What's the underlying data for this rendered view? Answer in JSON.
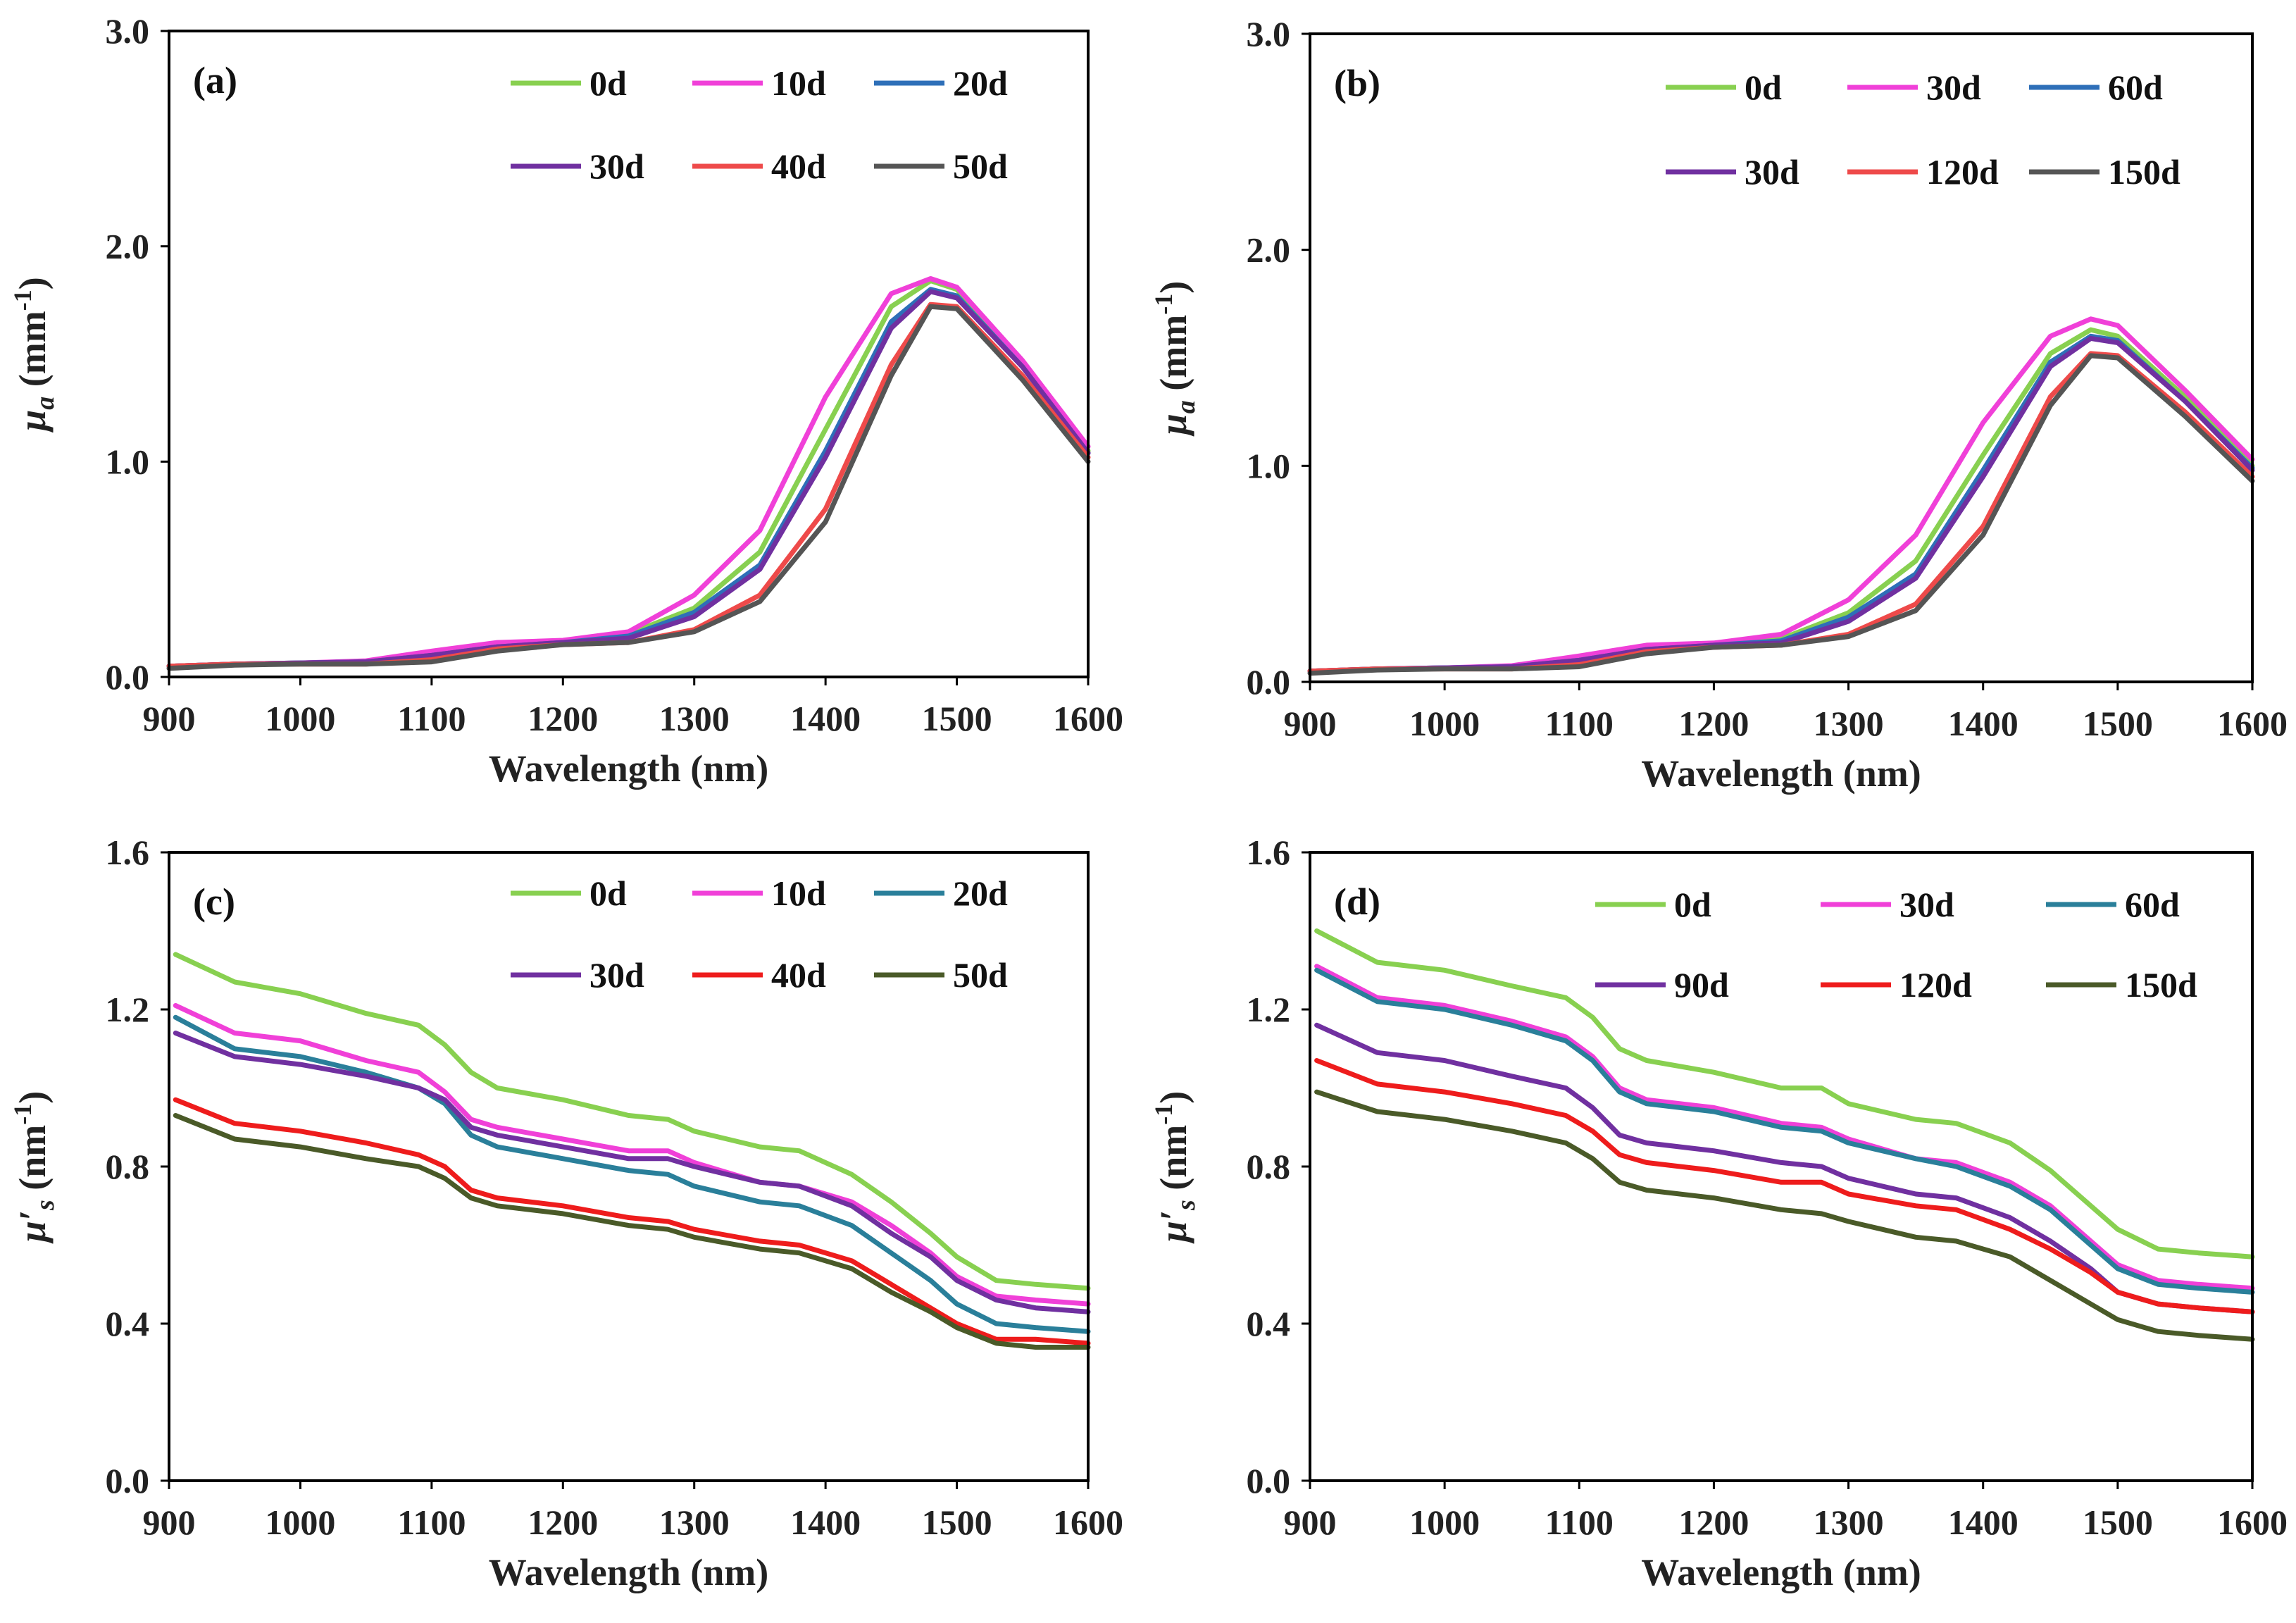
{
  "chart_data": [
    {
      "type": "line",
      "panel": "(a)",
      "xlabel": "Wavelength (nm)",
      "ylabel": "μa (mm⁻¹)",
      "ylabel_parts": {
        "symbol": "μ",
        "subscript": "a",
        "unit_pre": "(mm",
        "unit_sup": "-1",
        "unit_post": ")"
      },
      "xlim": [
        900,
        1600
      ],
      "ylim": [
        0,
        3
      ],
      "xticks": [
        "900",
        "1000",
        "1100",
        "1200",
        "1300",
        "1400",
        "1500",
        "1600"
      ],
      "xtick_values": [
        900,
        1000,
        1100,
        1200,
        1300,
        1400,
        1500,
        1600
      ],
      "yticks": [
        "0.0",
        "1.0",
        "2.0",
        "3.0"
      ],
      "ytick_values": [
        0,
        1,
        2,
        3
      ],
      "x": [
        900,
        950,
        1000,
        1050,
        1100,
        1150,
        1200,
        1250,
        1300,
        1350,
        1400,
        1450,
        1480,
        1500,
        1550,
        1600
      ],
      "series": [
        {
          "name": "0d",
          "color": "#88d050",
          "values": [
            0.05,
            0.06,
            0.065,
            0.07,
            0.1,
            0.14,
            0.16,
            0.2,
            0.32,
            0.58,
            1.15,
            1.72,
            1.84,
            1.8,
            1.45,
            1.05
          ]
        },
        {
          "name": "10d",
          "color": "#f040d8",
          "values": [
            0.05,
            0.06,
            0.065,
            0.075,
            0.12,
            0.16,
            0.17,
            0.21,
            0.38,
            0.68,
            1.3,
            1.78,
            1.85,
            1.81,
            1.47,
            1.07
          ]
        },
        {
          "name": "20d",
          "color": "#2e6fb8",
          "values": [
            0.05,
            0.06,
            0.065,
            0.07,
            0.1,
            0.14,
            0.16,
            0.19,
            0.3,
            0.52,
            1.05,
            1.65,
            1.8,
            1.77,
            1.44,
            1.04
          ]
        },
        {
          "name": "30d",
          "color": "#7030a0",
          "values": [
            0.05,
            0.06,
            0.065,
            0.07,
            0.1,
            0.14,
            0.16,
            0.18,
            0.28,
            0.5,
            1.02,
            1.62,
            1.79,
            1.76,
            1.44,
            1.04
          ]
        },
        {
          "name": "40d",
          "color": "#ee4a4a",
          "values": [
            0.05,
            0.06,
            0.06,
            0.06,
            0.08,
            0.13,
            0.15,
            0.16,
            0.22,
            0.38,
            0.78,
            1.45,
            1.73,
            1.72,
            1.4,
            1.02
          ]
        },
        {
          "name": "50d",
          "color": "#555555",
          "values": [
            0.04,
            0.055,
            0.06,
            0.06,
            0.07,
            0.12,
            0.15,
            0.16,
            0.21,
            0.35,
            0.72,
            1.4,
            1.72,
            1.71,
            1.38,
            1.0
          ]
        }
      ]
    },
    {
      "type": "line",
      "panel": "(b)",
      "xlabel": "Wavelength (nm)",
      "ylabel": "μa (mm⁻¹)",
      "ylabel_parts": {
        "symbol": "μ",
        "subscript": "a",
        "unit_pre": "(mm",
        "unit_sup": "-1",
        "unit_post": ")"
      },
      "xlim": [
        900,
        1600
      ],
      "ylim": [
        0,
        3
      ],
      "xticks": [
        "900",
        "1000",
        "1100",
        "1200",
        "1300",
        "1400",
        "1500",
        "1600"
      ],
      "xtick_values": [
        900,
        1000,
        1100,
        1200,
        1300,
        1400,
        1500,
        1600
      ],
      "yticks": [
        "0.0",
        "1.0",
        "2.0",
        "3.0"
      ],
      "ytick_values": [
        0,
        1,
        2,
        3
      ],
      "x": [
        900,
        950,
        1000,
        1050,
        1100,
        1150,
        1200,
        1250,
        1300,
        1350,
        1400,
        1450,
        1480,
        1500,
        1550,
        1600
      ],
      "series": [
        {
          "name": "0d",
          "color": "#88d050",
          "values": [
            0.05,
            0.06,
            0.065,
            0.07,
            0.1,
            0.15,
            0.17,
            0.2,
            0.32,
            0.56,
            1.05,
            1.52,
            1.63,
            1.6,
            1.32,
            1.0
          ]
        },
        {
          "name": "30d",
          "color": "#f040d8",
          "values": [
            0.05,
            0.06,
            0.065,
            0.075,
            0.12,
            0.17,
            0.18,
            0.22,
            0.38,
            0.68,
            1.2,
            1.6,
            1.68,
            1.65,
            1.35,
            1.03
          ]
        },
        {
          "name": "60d",
          "color": "#2e6fb8",
          "values": [
            0.05,
            0.06,
            0.065,
            0.07,
            0.1,
            0.15,
            0.17,
            0.19,
            0.3,
            0.5,
            0.98,
            1.48,
            1.6,
            1.58,
            1.3,
            0.99
          ]
        },
        {
          "name": "30d",
          "color": "#7030a0",
          "values": [
            0.05,
            0.06,
            0.065,
            0.07,
            0.1,
            0.15,
            0.17,
            0.18,
            0.28,
            0.48,
            0.95,
            1.46,
            1.59,
            1.57,
            1.3,
            0.98
          ]
        },
        {
          "name": "120d",
          "color": "#ee4a4a",
          "values": [
            0.05,
            0.06,
            0.06,
            0.06,
            0.08,
            0.14,
            0.16,
            0.17,
            0.22,
            0.36,
            0.72,
            1.32,
            1.52,
            1.51,
            1.25,
            0.95
          ]
        },
        {
          "name": "150d",
          "color": "#555555",
          "values": [
            0.04,
            0.055,
            0.06,
            0.06,
            0.07,
            0.13,
            0.16,
            0.17,
            0.21,
            0.33,
            0.68,
            1.28,
            1.51,
            1.5,
            1.23,
            0.93
          ]
        }
      ]
    },
    {
      "type": "line",
      "panel": "(c)",
      "xlabel": "Wavelength (nm)",
      "ylabel": "μ′s (nm⁻¹)",
      "ylabel_parts": {
        "symbol": "μ′",
        "subscript": "s",
        "unit_pre": "(nm",
        "unit_sup": "-1",
        "unit_post": ")"
      },
      "xlim": [
        900,
        1600
      ],
      "ylim": [
        0,
        1.6
      ],
      "xticks": [
        "900",
        "1000",
        "1100",
        "1200",
        "1300",
        "1400",
        "1500",
        "1600"
      ],
      "xtick_values": [
        900,
        1000,
        1100,
        1200,
        1300,
        1400,
        1500,
        1600
      ],
      "yticks": [
        "0.0",
        "0.4",
        "0.8",
        "1.2",
        "1.6"
      ],
      "ytick_values": [
        0,
        0.4,
        0.8,
        1.2,
        1.6
      ],
      "x": [
        905,
        950,
        1000,
        1050,
        1090,
        1110,
        1130,
        1150,
        1200,
        1250,
        1280,
        1300,
        1350,
        1380,
        1420,
        1450,
        1480,
        1500,
        1530,
        1560,
        1600
      ],
      "series": [
        {
          "name": "0d",
          "color": "#88d050",
          "values": [
            1.34,
            1.27,
            1.24,
            1.19,
            1.16,
            1.11,
            1.04,
            1.0,
            0.97,
            0.93,
            0.92,
            0.89,
            0.85,
            0.84,
            0.78,
            0.71,
            0.63,
            0.57,
            0.51,
            0.5,
            0.49
          ]
        },
        {
          "name": "10d",
          "color": "#f040d8",
          "values": [
            1.21,
            1.14,
            1.12,
            1.07,
            1.04,
            0.99,
            0.92,
            0.9,
            0.87,
            0.84,
            0.84,
            0.81,
            0.76,
            0.75,
            0.71,
            0.65,
            0.58,
            0.52,
            0.47,
            0.46,
            0.45
          ]
        },
        {
          "name": "20d",
          "color": "#2a7f9a",
          "values": [
            1.18,
            1.1,
            1.08,
            1.04,
            1.0,
            0.96,
            0.88,
            0.85,
            0.82,
            0.79,
            0.78,
            0.75,
            0.71,
            0.7,
            0.65,
            0.58,
            0.51,
            0.45,
            0.4,
            0.39,
            0.38
          ]
        },
        {
          "name": "30d",
          "color": "#7030a0",
          "values": [
            1.14,
            1.08,
            1.06,
            1.03,
            1.0,
            0.97,
            0.9,
            0.88,
            0.85,
            0.82,
            0.82,
            0.8,
            0.76,
            0.75,
            0.7,
            0.63,
            0.57,
            0.51,
            0.46,
            0.44,
            0.43
          ]
        },
        {
          "name": "40d",
          "color": "#ee1c1c",
          "values": [
            0.97,
            0.91,
            0.89,
            0.86,
            0.83,
            0.8,
            0.74,
            0.72,
            0.7,
            0.67,
            0.66,
            0.64,
            0.61,
            0.6,
            0.56,
            0.5,
            0.44,
            0.4,
            0.36,
            0.36,
            0.35
          ]
        },
        {
          "name": "50d",
          "color": "#4a5a28",
          "values": [
            0.93,
            0.87,
            0.85,
            0.82,
            0.8,
            0.77,
            0.72,
            0.7,
            0.68,
            0.65,
            0.64,
            0.62,
            0.59,
            0.58,
            0.54,
            0.48,
            0.43,
            0.39,
            0.35,
            0.34,
            0.34
          ]
        }
      ]
    },
    {
      "type": "line",
      "panel": "(d)",
      "xlabel": "Wavelength (nm)",
      "ylabel": "μ′s (nm⁻¹)",
      "ylabel_parts": {
        "symbol": "μ′",
        "subscript": "s",
        "unit_pre": "(nm",
        "unit_sup": "-1",
        "unit_post": ")"
      },
      "xlim": [
        900,
        1600
      ],
      "ylim": [
        0,
        1.6
      ],
      "xticks": [
        "900",
        "1000",
        "1100",
        "1200",
        "1300",
        "1400",
        "1500",
        "1600"
      ],
      "xtick_values": [
        900,
        1000,
        1100,
        1200,
        1300,
        1400,
        1500,
        1600
      ],
      "yticks": [
        "0.0",
        "0.4",
        "0.8",
        "1.2",
        "1.6"
      ],
      "ytick_values": [
        0,
        0.4,
        0.8,
        1.2,
        1.6
      ],
      "x": [
        905,
        950,
        1000,
        1050,
        1090,
        1110,
        1130,
        1150,
        1200,
        1250,
        1280,
        1300,
        1350,
        1380,
        1420,
        1450,
        1480,
        1500,
        1530,
        1560,
        1600
      ],
      "series": [
        {
          "name": "0d",
          "color": "#88d050",
          "values": [
            1.4,
            1.32,
            1.3,
            1.26,
            1.23,
            1.18,
            1.1,
            1.07,
            1.04,
            1.0,
            1.0,
            0.96,
            0.92,
            0.91,
            0.86,
            0.79,
            0.7,
            0.64,
            0.59,
            0.58,
            0.57
          ]
        },
        {
          "name": "30d",
          "color": "#f040d8",
          "values": [
            1.31,
            1.23,
            1.21,
            1.17,
            1.13,
            1.08,
            1.0,
            0.97,
            0.95,
            0.91,
            0.9,
            0.87,
            0.82,
            0.81,
            0.76,
            0.7,
            0.61,
            0.55,
            0.51,
            0.5,
            0.49
          ]
        },
        {
          "name": "60d",
          "color": "#2a7f9a",
          "values": [
            1.3,
            1.22,
            1.2,
            1.16,
            1.12,
            1.07,
            0.99,
            0.96,
            0.94,
            0.9,
            0.89,
            0.86,
            0.82,
            0.8,
            0.75,
            0.69,
            0.6,
            0.54,
            0.5,
            0.49,
            0.48
          ]
        },
        {
          "name": "90d",
          "color": "#7030a0",
          "values": [
            1.16,
            1.09,
            1.07,
            1.03,
            1.0,
            0.95,
            0.88,
            0.86,
            0.84,
            0.81,
            0.8,
            0.77,
            0.73,
            0.72,
            0.67,
            0.61,
            0.54,
            0.48,
            0.45,
            0.44,
            0.43
          ]
        },
        {
          "name": "120d",
          "color": "#ee1c1c",
          "values": [
            1.07,
            1.01,
            0.99,
            0.96,
            0.93,
            0.89,
            0.83,
            0.81,
            0.79,
            0.76,
            0.76,
            0.73,
            0.7,
            0.69,
            0.64,
            0.59,
            0.53,
            0.48,
            0.45,
            0.44,
            0.43
          ]
        },
        {
          "name": "150d",
          "color": "#4a5a28",
          "values": [
            0.99,
            0.94,
            0.92,
            0.89,
            0.86,
            0.82,
            0.76,
            0.74,
            0.72,
            0.69,
            0.68,
            0.66,
            0.62,
            0.61,
            0.57,
            0.51,
            0.45,
            0.41,
            0.38,
            0.37,
            0.36
          ]
        }
      ]
    }
  ]
}
